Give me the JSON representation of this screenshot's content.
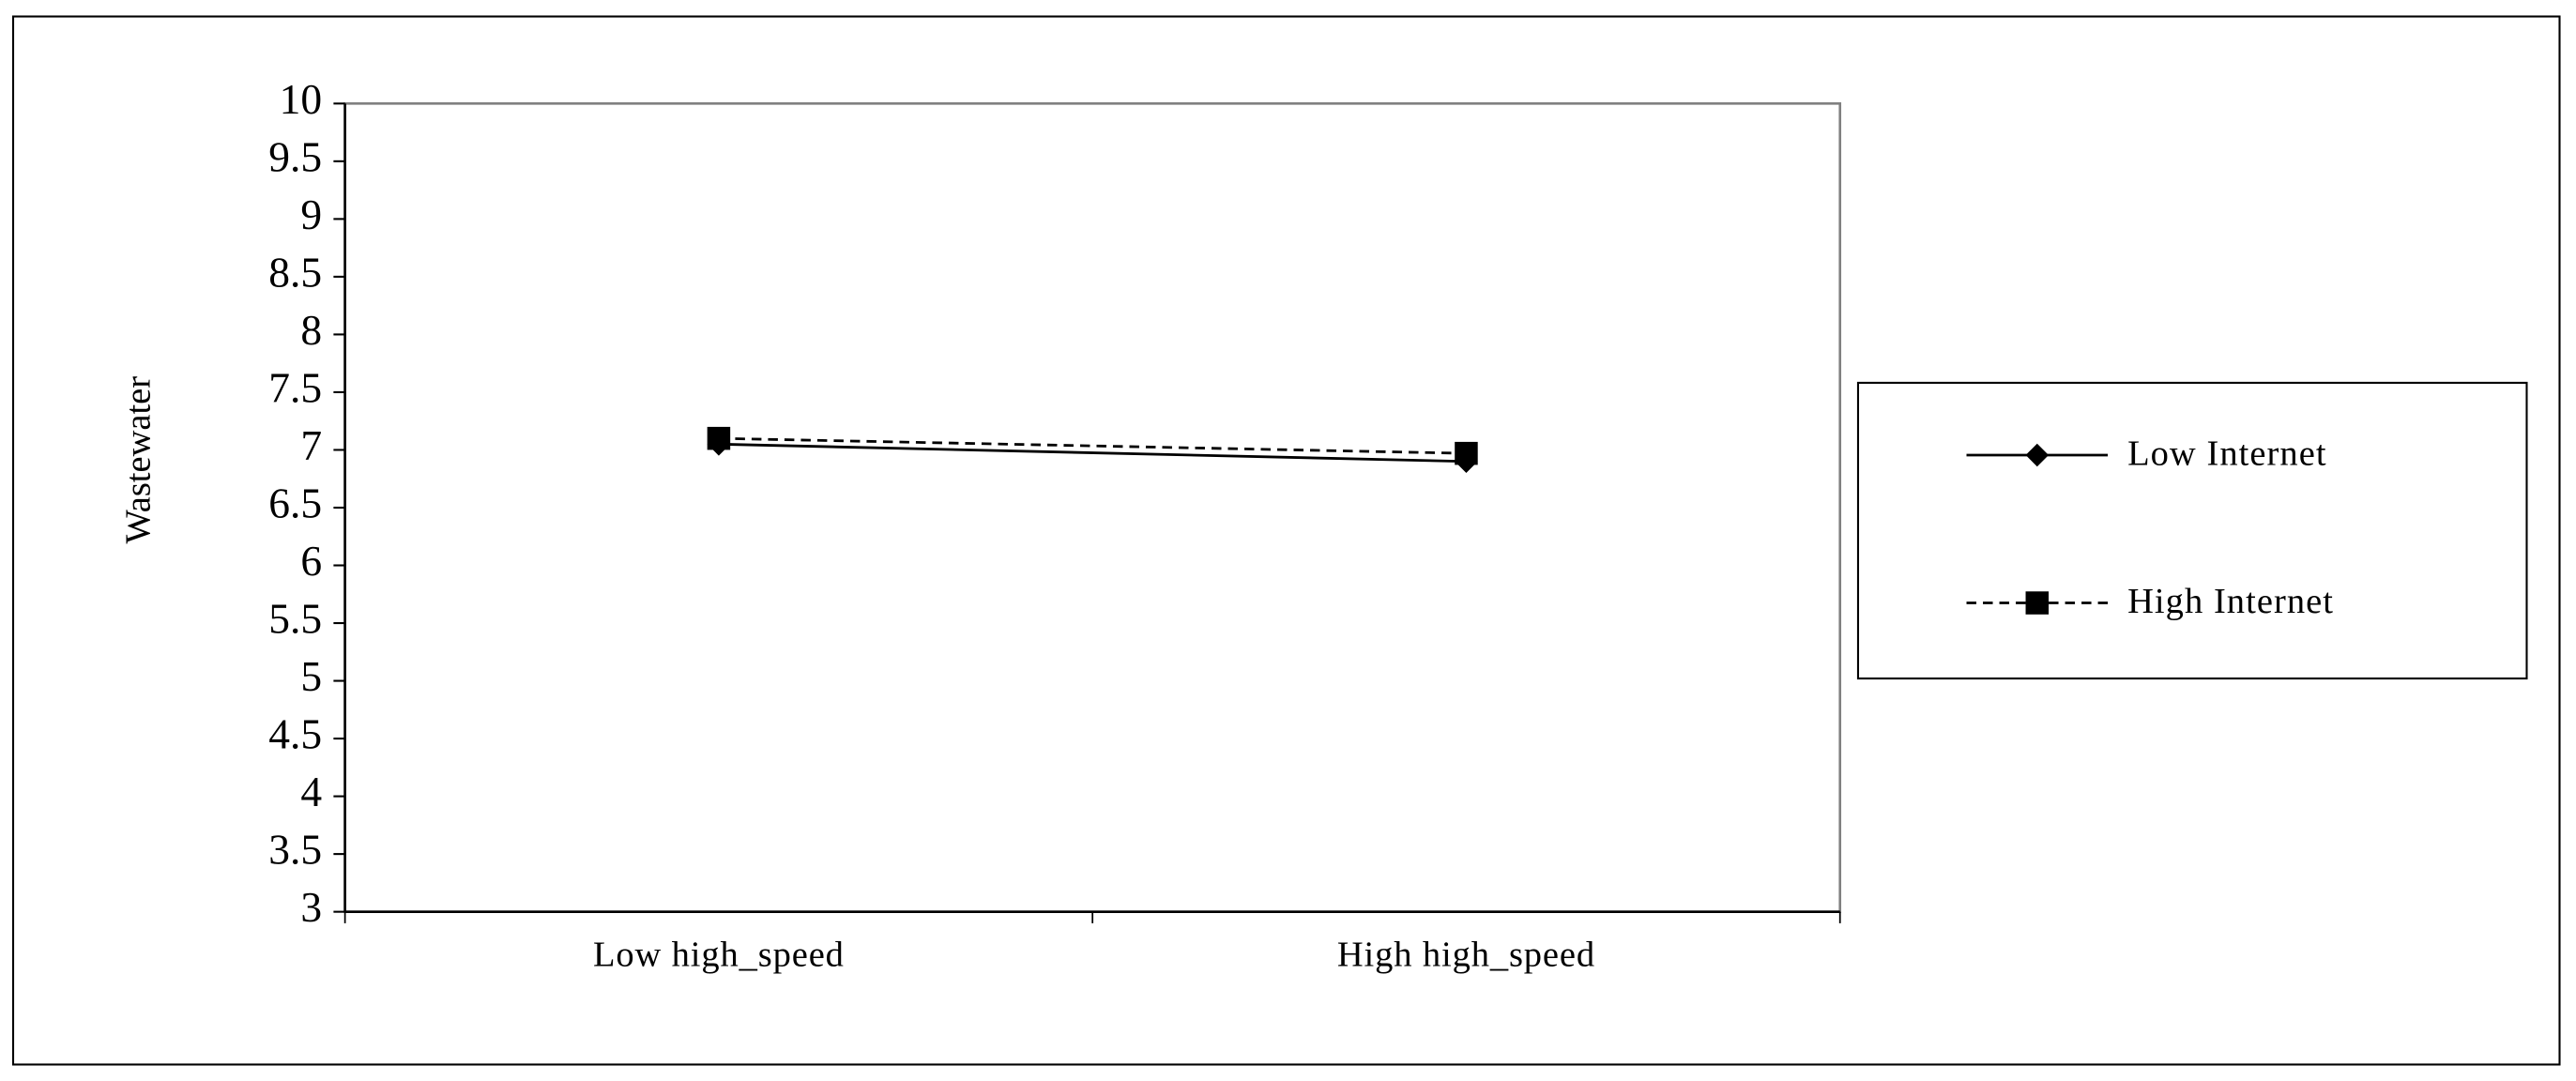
{
  "chart_data": {
    "type": "line",
    "y_label": "Wastewater",
    "categories": [
      "Low high_speed",
      "High high_speed"
    ],
    "series": [
      {
        "name": "Low Internet",
        "color": "#000000",
        "linestyle": "solid",
        "marker": "diamond",
        "values": [
          7.05,
          6.9
        ]
      },
      {
        "name": "High Internet",
        "color": "#000000",
        "linestyle": "dashed",
        "marker": "square",
        "values": [
          7.1,
          6.97
        ]
      }
    ],
    "ylim": [
      3,
      10
    ],
    "yticks": [
      3,
      3.5,
      4,
      4.5,
      5,
      5.5,
      6,
      6.5,
      7,
      7.5,
      8,
      8.5,
      9,
      9.5,
      10
    ],
    "grid": false,
    "legend": "right"
  }
}
